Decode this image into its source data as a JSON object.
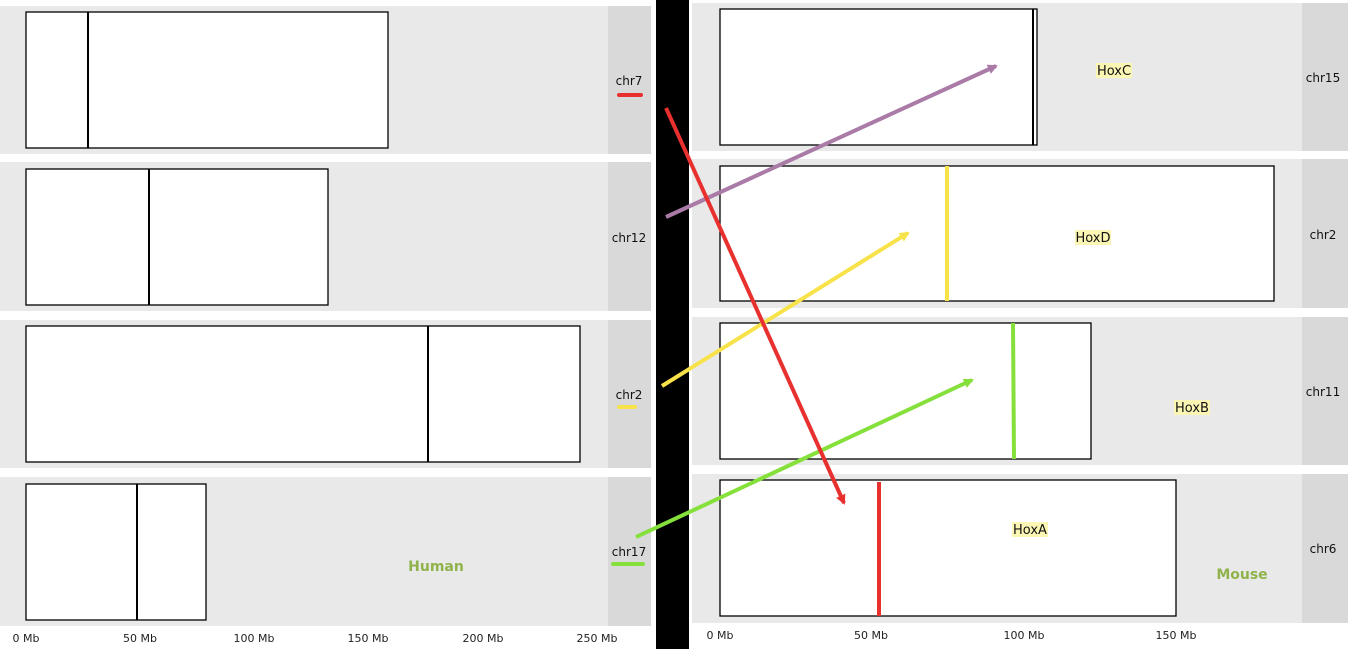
{
  "colors": {
    "red": "#e8302f",
    "yellow": "#f7e24a",
    "green": "#86e03c",
    "purple": "#a97ba6",
    "species": "#8fb34a",
    "hox_highlight": "#fbf6b3",
    "divider": "#000000"
  },
  "human": {
    "species_label": "Human",
    "tracks": [
      {
        "name": "chr7",
        "length_mb": 159,
        "centromere_mb": 27,
        "legend_color": "red"
      },
      {
        "name": "chr12",
        "length_mb": 133,
        "centromere_mb": 54,
        "legend_color": null
      },
      {
        "name": "chr2",
        "length_mb": 243,
        "centromere_mb": 177,
        "legend_color": "yellow"
      },
      {
        "name": "chr17",
        "length_mb": 79,
        "centromere_mb": 49,
        "legend_color": "green"
      }
    ],
    "axis_ticks": [
      "0 Mb",
      "50 Mb",
      "100 Mb",
      "150 Mb",
      "200 Mb",
      "250 Mb"
    ]
  },
  "mouse": {
    "species_label": "Mouse",
    "tracks": [
      {
        "name": "chr15",
        "length_mb": 104,
        "centromere_mb": 104,
        "hox_label": "HoxC",
        "hox_mb": null,
        "hox_color": null
      },
      {
        "name": "chr2",
        "length_mb": 182,
        "centromere_mb": null,
        "hox_label": "HoxD",
        "hox_mb": 75,
        "hox_color": "yellow"
      },
      {
        "name": "chr11",
        "length_mb": 122,
        "centromere_mb": null,
        "hox_label": "HoxB",
        "hox_mb": 97,
        "hox_color": "green"
      },
      {
        "name": "chr6",
        "length_mb": 150,
        "centromere_mb": null,
        "hox_label": "HoxA",
        "hox_mb": 52,
        "hox_color": "red"
      }
    ],
    "axis_ticks": [
      "0 Mb",
      "50 Mb",
      "100 Mb",
      "150 Mb"
    ]
  },
  "links": [
    {
      "from": "human chr7",
      "to": "mouse chr6 HoxA",
      "color": "red"
    },
    {
      "from": "human chr12",
      "to": "mouse chr15 HoxC",
      "color": "purple"
    },
    {
      "from": "human chr2",
      "to": "mouse chr2 HoxD",
      "color": "yellow"
    },
    {
      "from": "human chr17",
      "to": "mouse chr11 HoxB",
      "color": "green"
    }
  ]
}
